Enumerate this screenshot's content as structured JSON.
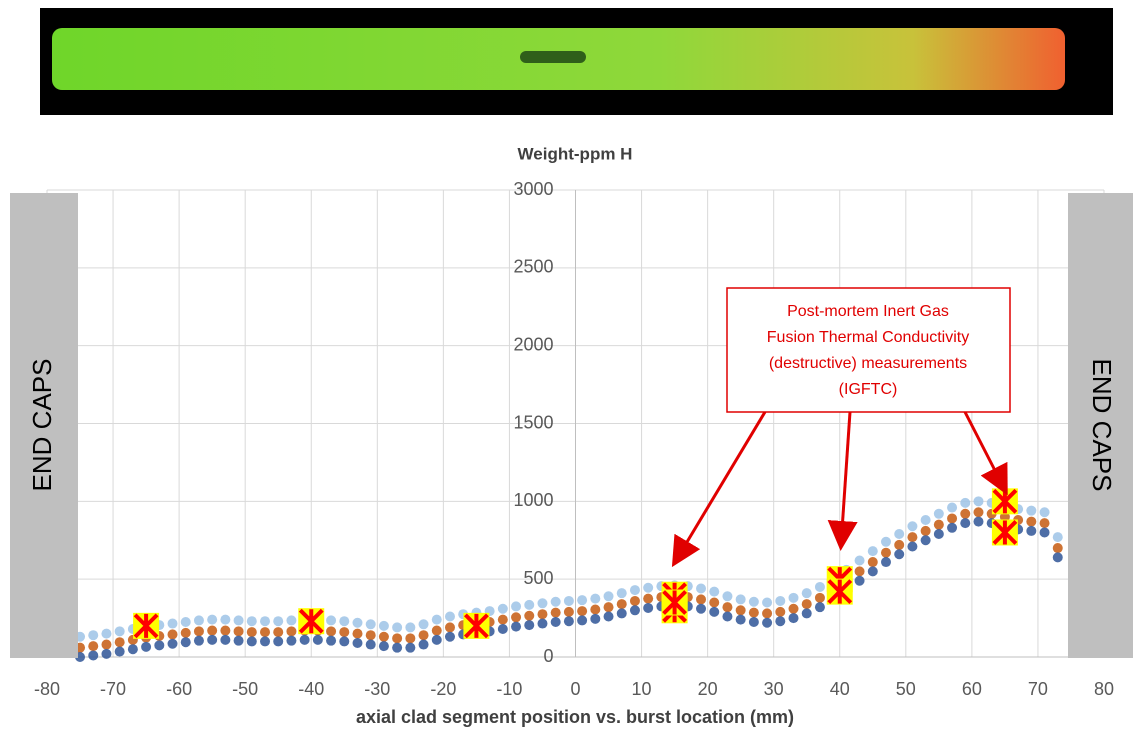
{
  "chart_data": {
    "type": "scatter",
    "title": "Weight-ppm H",
    "x_label": "axial clad segment position vs. burst location (mm)",
    "end_cap_label": "END CAPS",
    "annotation": {
      "lines": [
        "Post-mortem Inert Gas",
        "Fusion Thermal Conductivity",
        "(destructive) measurements",
        "(IGFTC)"
      ],
      "color": "#e00000"
    },
    "xlim": [
      -80,
      80
    ],
    "xticks": [
      -80,
      -70,
      -60,
      -50,
      -40,
      -30,
      -20,
      -10,
      0,
      10,
      20,
      30,
      40,
      50,
      60,
      70,
      80
    ],
    "ylim": [
      0,
      3000
    ],
    "yticks": [
      0,
      500,
      1000,
      1500,
      2000,
      2500,
      3000
    ],
    "grid": true,
    "x": [
      -75,
      -73,
      -71,
      -69,
      -67,
      -65,
      -63,
      -61,
      -59,
      -57,
      -55,
      -53,
      -51,
      -49,
      -47,
      -45,
      -43,
      -41,
      -39,
      -37,
      -35,
      -33,
      -31,
      -29,
      -27,
      -25,
      -23,
      -21,
      -19,
      -17,
      -15,
      -13,
      -11,
      -9,
      -7,
      -5,
      -3,
      -1,
      1,
      3,
      5,
      7,
      9,
      11,
      13,
      15,
      17,
      19,
      21,
      23,
      25,
      27,
      29,
      31,
      33,
      35,
      37,
      39,
      41,
      43,
      45,
      47,
      49,
      51,
      53,
      55,
      57,
      59,
      61,
      63,
      65,
      67,
      69,
      71,
      73
    ],
    "series": [
      {
        "color": "#9dc3e6",
        "values": [
          130,
          140,
          150,
          165,
          180,
          195,
          205,
          215,
          225,
          235,
          240,
          240,
          235,
          230,
          230,
          230,
          235,
          240,
          240,
          235,
          230,
          220,
          210,
          200,
          190,
          190,
          210,
          240,
          260,
          275,
          285,
          295,
          310,
          325,
          335,
          345,
          355,
          360,
          365,
          375,
          390,
          410,
          430,
          445,
          455,
          460,
          455,
          440,
          420,
          390,
          370,
          355,
          350,
          360,
          380,
          410,
          450,
          500,
          560,
          620,
          680,
          740,
          790,
          840,
          880,
          920,
          960,
          990,
          1000,
          990,
          970,
          950,
          940,
          930,
          770
        ]
      },
      {
        "color": "#c55a11",
        "values": [
          60,
          70,
          80,
          95,
          110,
          125,
          135,
          145,
          155,
          165,
          170,
          170,
          165,
          160,
          160,
          160,
          165,
          170,
          170,
          165,
          160,
          150,
          140,
          130,
          120,
          120,
          140,
          170,
          190,
          205,
          215,
          225,
          240,
          255,
          265,
          275,
          285,
          290,
          295,
          305,
          320,
          340,
          360,
          375,
          385,
          390,
          385,
          370,
          350,
          320,
          300,
          285,
          280,
          290,
          310,
          340,
          380,
          430,
          490,
          550,
          610,
          670,
          720,
          770,
          810,
          850,
          890,
          920,
          930,
          920,
          900,
          880,
          870,
          860,
          700
        ]
      },
      {
        "color": "#2f5597",
        "values": [
          0,
          10,
          20,
          35,
          50,
          65,
          75,
          85,
          95,
          105,
          110,
          110,
          105,
          100,
          100,
          100,
          105,
          110,
          110,
          105,
          100,
          90,
          80,
          70,
          60,
          60,
          80,
          110,
          130,
          145,
          155,
          165,
          180,
          195,
          205,
          215,
          225,
          230,
          235,
          245,
          260,
          280,
          300,
          315,
          325,
          330,
          325,
          310,
          290,
          260,
          240,
          225,
          220,
          230,
          250,
          280,
          320,
          370,
          430,
          490,
          550,
          610,
          660,
          710,
          750,
          790,
          830,
          860,
          870,
          860,
          840,
          820,
          810,
          800,
          640
        ]
      }
    ],
    "igftc": {
      "color": "#ffff00",
      "cross_color": "#ff0000",
      "x": [
        -65,
        -40,
        -15,
        15,
        15,
        15,
        40,
        40,
        65,
        65
      ],
      "values": [
        200,
        230,
        200,
        400,
        300,
        350,
        500,
        420,
        1000,
        800
      ]
    }
  }
}
